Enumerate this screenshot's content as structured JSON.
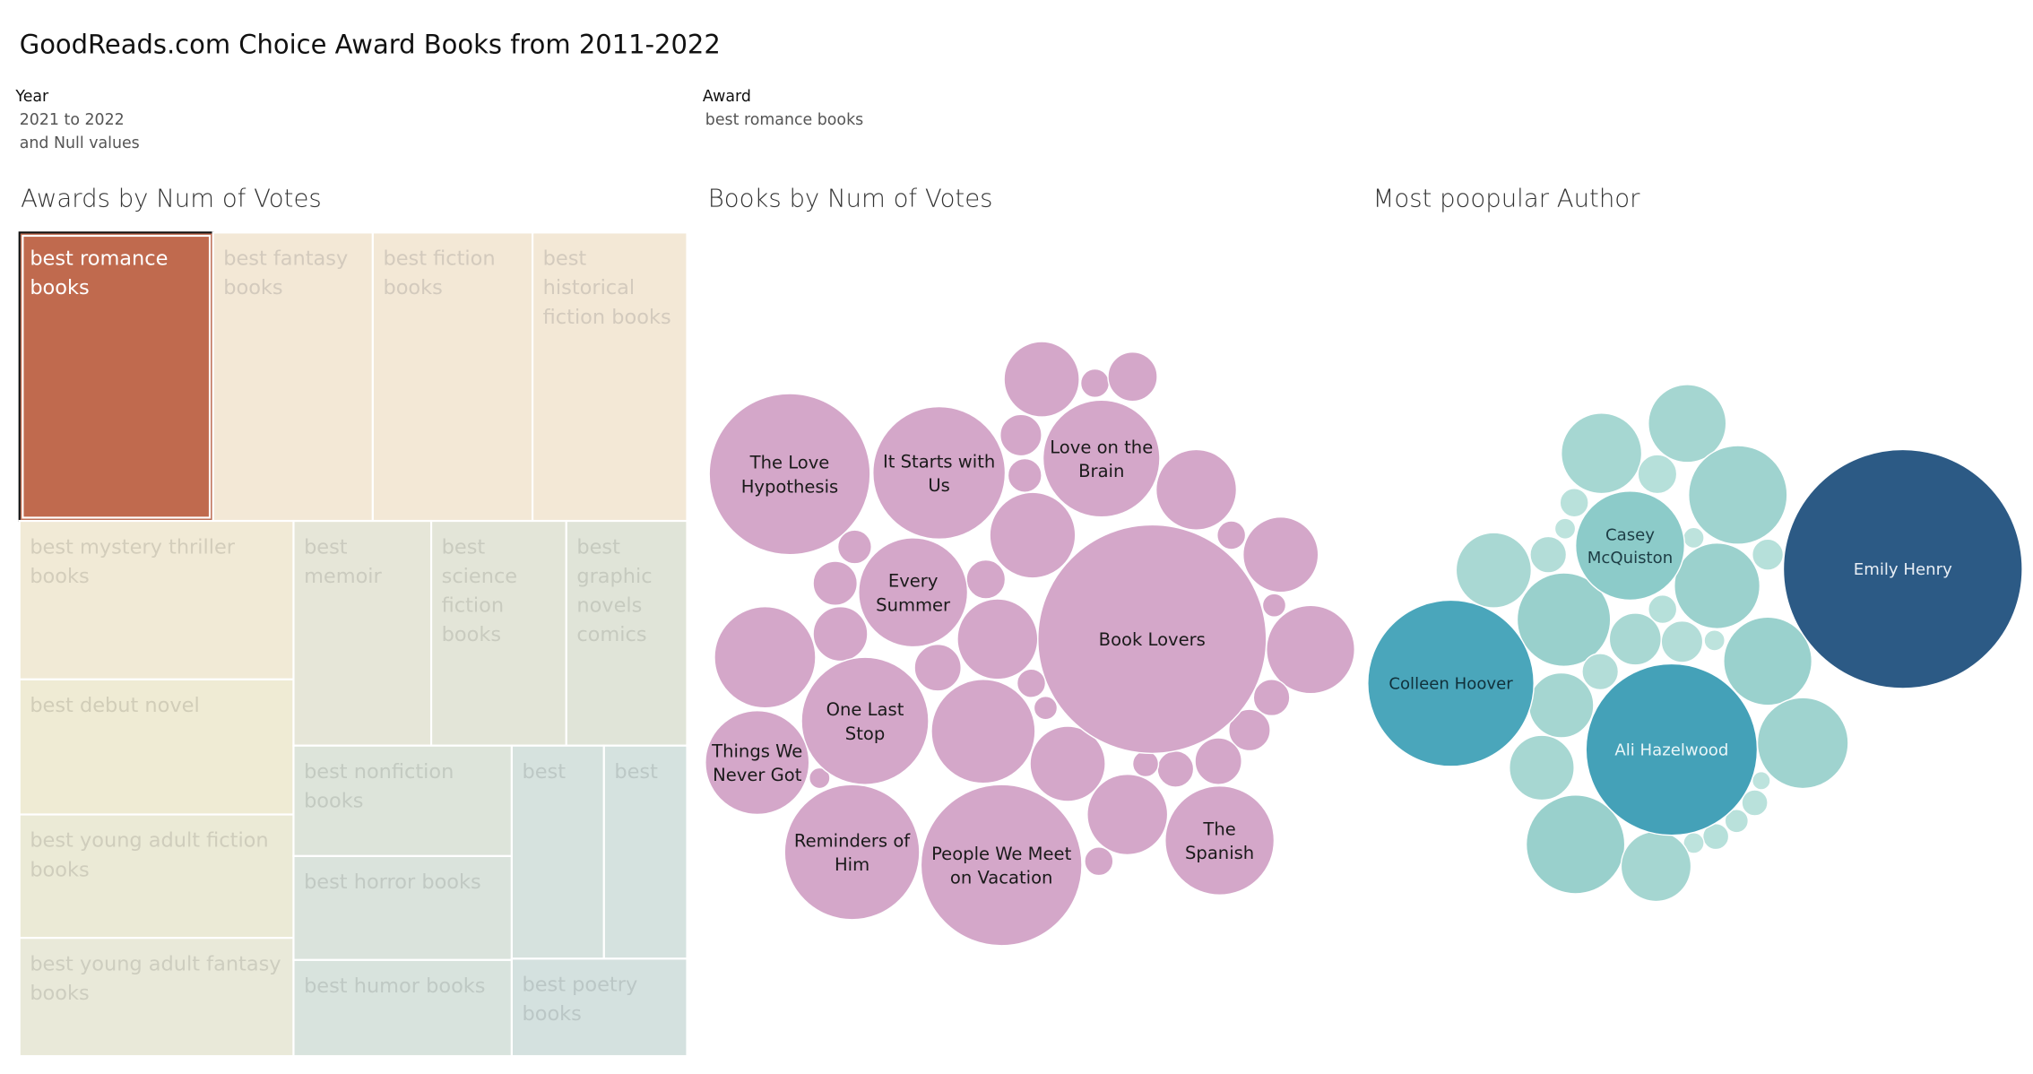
{
  "title": "GoodReads.com Choice Award Books from 2011-2022",
  "filters": {
    "year": {
      "label": "Year",
      "values": [
        "2021 to 2022",
        "and Null values"
      ]
    },
    "award": {
      "label": "Award",
      "values": [
        "best romance books"
      ]
    }
  },
  "colors": {
    "selected_award": "#c06a4e",
    "books_bubble": "#d4a7c9",
    "author_light": "#a8d8d2",
    "author_mid": "#4aa6bb",
    "author_dark": "#2c5a85"
  },
  "chart_data": [
    {
      "type": "treemap",
      "title": "Awards by Num of Votes",
      "selected": "best romance books",
      "items": [
        {
          "label": "best romance books",
          "fill": "#c06a4e",
          "text": "#ffffff",
          "selected": true
        },
        {
          "label": "best fantasy books",
          "fill": "#f3e8d6",
          "text": "#d3cabd"
        },
        {
          "label": "best fiction books",
          "fill": "#f3e8d6",
          "text": "#d3cabd"
        },
        {
          "label": "best historical fiction books",
          "fill": "#f3e8d6",
          "text": "#d3cabd"
        },
        {
          "label": "best mystery thriller books",
          "fill": "#f1ead6",
          "text": "#d3cdbb"
        },
        {
          "label": "best debut novel",
          "fill": "#efebd4",
          "text": "#d1cdb8"
        },
        {
          "label": "best young adult fiction books",
          "fill": "#ebead6",
          "text": "#cfcdbc"
        },
        {
          "label": "best young adult fantasy books",
          "fill": "#e9e9d9",
          "text": "#cdcdbf"
        },
        {
          "label": "best memoir",
          "fill": "#e6e6d8",
          "text": "#cbcbbf"
        },
        {
          "label": "best science fiction books",
          "fill": "#e3e5d8",
          "text": "#c9cbbf"
        },
        {
          "label": "best graphic novels comics",
          "fill": "#e0e4d8",
          "text": "#c6cabf"
        },
        {
          "label": "best nonfiction books",
          "fill": "#dde4da",
          "text": "#c3cac1"
        },
        {
          "label": "best horror books",
          "fill": "#dae3dc",
          "text": "#c1c9c3"
        },
        {
          "label": "best humor books",
          "fill": "#d8e3dd",
          "text": "#bfc9c4"
        },
        {
          "label": "best",
          "fill": "#d6e2de",
          "text": "#bdc8c5"
        },
        {
          "label": "best",
          "fill": "#d5e2df",
          "text": "#bcc8c6"
        },
        {
          "label": "best poetry books",
          "fill": "#d4e1df",
          "text": "#bbc7c6"
        }
      ]
    },
    {
      "type": "packed_bubble",
      "title": "Books by Num of Votes",
      "color": "#d4a7c9",
      "labeled": [
        "Book Lovers",
        "People We Meet on Vacation",
        "The Love Hypothesis",
        "It Starts with Us",
        "Love on the Brain",
        "Every Summer",
        "One Last Stop",
        "Reminders of Him",
        "Things We Never Got",
        "The Spanish"
      ]
    },
    {
      "type": "packed_bubble",
      "title": "Most poopular Author",
      "labeled": [
        "Emily Henry",
        "Ali Hazelwood",
        "Colleen Hoover",
        "Casey McQuiston"
      ]
    }
  ]
}
